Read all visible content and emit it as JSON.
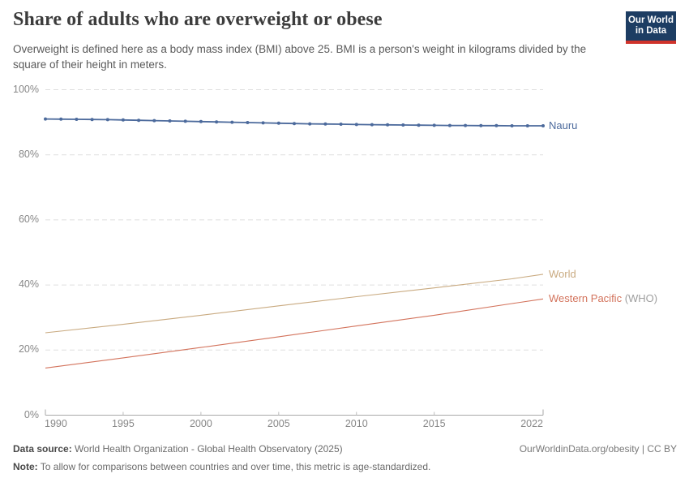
{
  "header": {
    "title": "Share of adults who are overweight or obese",
    "subtitle": "Overweight is defined here as a body mass index (BMI) above 25. BMI is a person's weight in kilograms divided by the square of their height in meters.",
    "logo": {
      "line1": "Our World",
      "line2": "in Data",
      "bg_color": "#1D3D63",
      "accent_color": "#D0332B"
    }
  },
  "chart_data": {
    "type": "line",
    "title": "Share of adults who are overweight or obese",
    "xlabel": "",
    "ylabel": "",
    "unit": "%",
    "grid": true,
    "legend_position": "right-of-line-end",
    "x_axis": {
      "range": [
        1990,
        2022
      ],
      "ticks": [
        1990,
        1995,
        2000,
        2005,
        2010,
        2015,
        2022
      ]
    },
    "y_axis": {
      "range": [
        0,
        100
      ],
      "tick_labels": [
        "0%",
        "20%",
        "40%",
        "60%",
        "80%",
        "100%"
      ]
    },
    "series": [
      {
        "name": "Nauru",
        "color": "#4C6A9C",
        "markers": true,
        "x": [
          1990,
          1991,
          1992,
          1993,
          1994,
          1995,
          1996,
          1997,
          1998,
          1999,
          2000,
          2001,
          2002,
          2003,
          2004,
          2005,
          2006,
          2007,
          2008,
          2009,
          2010,
          2011,
          2012,
          2013,
          2014,
          2015,
          2016,
          2017,
          2018,
          2019,
          2020,
          2021,
          2022
        ],
        "values": [
          91.0,
          90.95,
          90.9,
          90.85,
          90.8,
          90.7,
          90.6,
          90.5,
          90.4,
          90.3,
          90.2,
          90.1,
          90.0,
          89.9,
          89.8,
          89.7,
          89.6,
          89.5,
          89.45,
          89.4,
          89.3,
          89.25,
          89.2,
          89.15,
          89.1,
          89.05,
          89.0,
          89.0,
          88.95,
          88.95,
          88.9,
          88.9,
          88.9
        ]
      },
      {
        "name": "World",
        "color": "#C9AA80",
        "markers": false,
        "x": [
          1990,
          1995,
          2000,
          2005,
          2010,
          2015,
          2020,
          2022
        ],
        "values": [
          25.3,
          27.9,
          30.7,
          33.6,
          36.4,
          39.1,
          41.9,
          43.3
        ]
      },
      {
        "name": "Western Pacific",
        "name_suffix": " (WHO)",
        "color": "#D3735C",
        "markers": false,
        "x": [
          1990,
          1995,
          2000,
          2005,
          2010,
          2015,
          2020,
          2022
        ],
        "values": [
          14.5,
          17.6,
          20.8,
          24.1,
          27.4,
          30.7,
          34.3,
          35.7
        ]
      }
    ]
  },
  "footer": {
    "datasource_label": "Data source:",
    "datasource_text": " World Health Organization - Global Health Observatory (2025)",
    "link_text": "OurWorldinData.org/obesity | CC BY",
    "note_label": "Note:",
    "note_text": " To allow for comparisons between countries and over time, this metric is age-standardized."
  }
}
